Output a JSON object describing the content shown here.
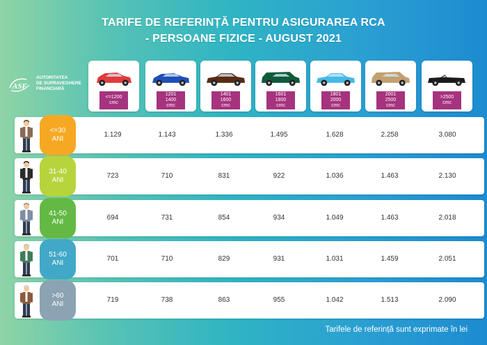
{
  "title_line1": "TARIFE DE REFERINȚĂ PENTRU ASIGURAREA RCA",
  "title_line2": "- PERSOANE FIZICE - AUGUST 2021",
  "logo": {
    "text_line1": "AUTORITATEA",
    "text_line2": "DE SUPRAVEGHERE",
    "text_line3": "FINANCIARĂ",
    "mark": "ASF"
  },
  "footer": "Tarifele de referință sunt exprimate în lei",
  "colors": {
    "badge_colors": [
      "#f7a823",
      "#b7d43c",
      "#64b945",
      "#42a8c7",
      "#8ba3b3"
    ],
    "cc_label": "#a6337e"
  },
  "cars": [
    {
      "label": "<=1200\ncmc",
      "color": "#e23a3a",
      "shape": "hatchback"
    },
    {
      "label": "1201\n1400\ncmc",
      "color": "#1f4fb8",
      "shape": "compact"
    },
    {
      "label": "1401\n1600\ncmc",
      "color": "#5a2b14",
      "shape": "sedan"
    },
    {
      "label": "1601\n1800\ncmc",
      "color": "#0f5a3a",
      "shape": "estate"
    },
    {
      "label": "1801\n2000\ncmc",
      "color": "#45b9e8",
      "shape": "sedan"
    },
    {
      "label": "2001\n2500\ncmc",
      "color": "#c2a070",
      "shape": "estate"
    },
    {
      "label": ">2500\ncmc",
      "color": "#1a1a1a",
      "shape": "convertible"
    }
  ],
  "chart_data": {
    "type": "table",
    "columns": [
      "<=1200 cmc",
      "1201-1400 cmc",
      "1401-1600 cmc",
      "1601-1800 cmc",
      "1801-2000 cmc",
      "2001-2500 cmc",
      ">2500 cmc"
    ],
    "rows": [
      {
        "label": "<=30 ANI",
        "values": [
          "1.129",
          "1.143",
          "1.336",
          "1.495",
          "1.628",
          "2.258",
          "3.080"
        ]
      },
      {
        "label": "31-40 ANI",
        "values": [
          "723",
          "710",
          "831",
          "922",
          "1.036",
          "1.463",
          "2.130"
        ]
      },
      {
        "label": "41-50 ANI",
        "values": [
          "694",
          "731",
          "854",
          "934",
          "1.049",
          "1.463",
          "2.018"
        ]
      },
      {
        "label": "51-60 ANI",
        "values": [
          "701",
          "710",
          "829",
          "931",
          "1.031",
          "1.459",
          "2.051"
        ]
      },
      {
        "label": ">60 ANI",
        "values": [
          "719",
          "738",
          "863",
          "955",
          "1.042",
          "1.513",
          "2.090"
        ]
      }
    ]
  }
}
